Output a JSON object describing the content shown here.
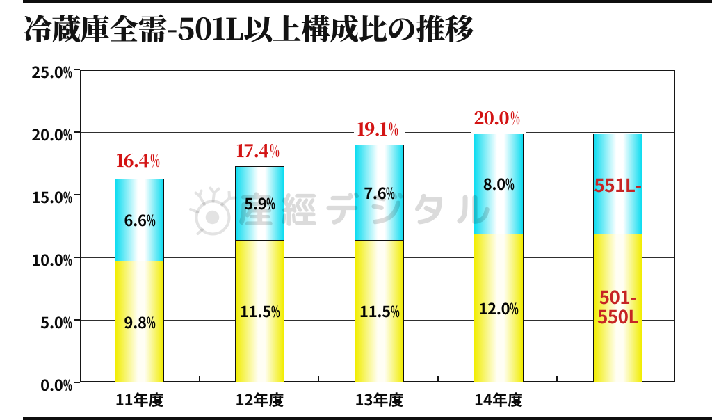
{
  "title": "冷蔵庫全需-501L以上構成比の推移",
  "watermark": {
    "text": "産經デジタル",
    "logo": "sankei-bird-logo",
    "text_color": "rgba(0,0,0,0.14)",
    "logo_color": "rgba(0,0,0,0.11)"
  },
  "chart_data": {
    "type": "bar",
    "stacked": true,
    "title": "冷蔵庫全需-501L以上構成比の推移",
    "categories": [
      "11年度",
      "12年度",
      "13年度",
      "14年度",
      ""
    ],
    "series": [
      {
        "name": "501-550L",
        "values": [
          9.8,
          11.5,
          11.5,
          12.0,
          12.0
        ],
        "labels": [
          "9.8%",
          "11.5%",
          "11.5%",
          "12.0%",
          ""
        ],
        "color": "#f1ed00",
        "color_center": "#fffef4",
        "label_color": "#050505"
      },
      {
        "name": "551L-",
        "values": [
          6.6,
          5.9,
          7.6,
          8.0,
          8.0
        ],
        "labels": [
          "6.6%",
          "5.9%",
          "7.6%",
          "8.0%",
          ""
        ],
        "color": "#0cdcf0",
        "color_center": "#ffffff",
        "label_color": "#050505"
      }
    ],
    "totals": {
      "labels": [
        "16.4%",
        "17.4%",
        "19.1%",
        "20.0%"
      ],
      "color": "#d31414"
    },
    "in_bar_legend": {
      "bar_index": 4,
      "top_label": "551L-",
      "bottom_label_lines": [
        "501-",
        "550L"
      ],
      "color": "#c62424"
    },
    "y_axis": {
      "min": 0,
      "max": 25,
      "tick_labels": [
        "25.0%",
        "20.0%",
        "15.0%",
        "10.0%",
        "5.0%",
        "0.0%"
      ]
    },
    "xlabel": "",
    "ylabel": "",
    "grid": true,
    "legend_position": "inside-last-bar"
  }
}
